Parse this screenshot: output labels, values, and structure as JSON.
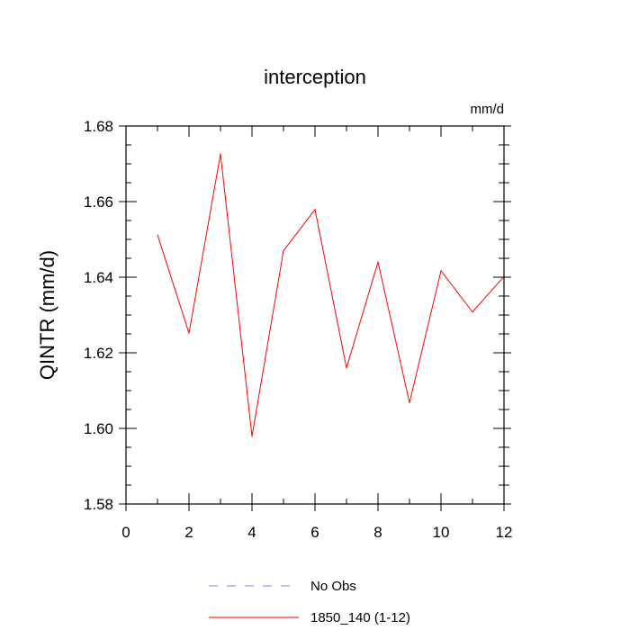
{
  "chart_data": {
    "type": "line",
    "title": "interception",
    "units_label": "mm/d",
    "xlabel": "",
    "ylabel": "QINTR  (mm/d)",
    "xlim": [
      0,
      12
    ],
    "ylim": [
      1.58,
      1.68
    ],
    "x_ticks": [
      "0",
      "2",
      "4",
      "6",
      "8",
      "10",
      "12"
    ],
    "y_ticks": [
      "1.58",
      "1.60",
      "1.62",
      "1.64",
      "1.66",
      "1.68"
    ],
    "grid": false,
    "legend_position": "bottom",
    "series": [
      {
        "name": "1850_140 (1-12)",
        "color": "#ff0000",
        "dash": "solid",
        "x": [
          1,
          2,
          3,
          4,
          5,
          6,
          7,
          8,
          9,
          10,
          11,
          12
        ],
        "y": [
          1.6512,
          1.6252,
          1.6726,
          1.5979,
          1.647,
          1.6579,
          1.616,
          1.644,
          1.6068,
          1.6417,
          1.6308,
          1.6402
        ]
      }
    ],
    "legend": [
      {
        "label": "No Obs",
        "color": "#8080ff",
        "dash": "dashed"
      },
      {
        "label": "1850_140 (1-12)",
        "color": "#ff0000",
        "dash": "solid"
      }
    ]
  }
}
